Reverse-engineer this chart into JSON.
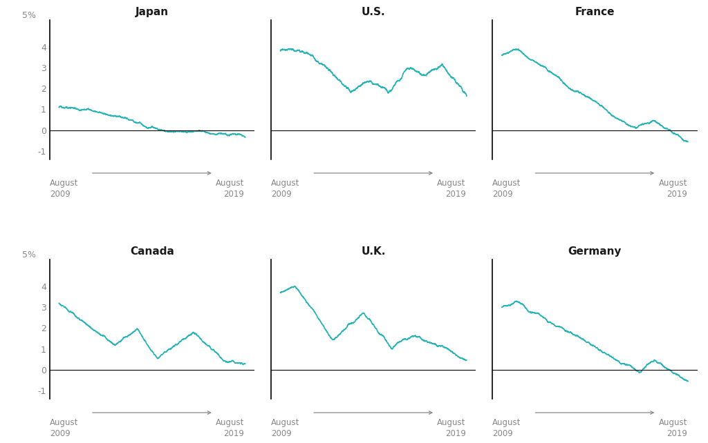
{
  "panels": [
    {
      "title": "Japan"
    },
    {
      "title": "U.S."
    },
    {
      "title": "France"
    },
    {
      "title": "Canada"
    },
    {
      "title": "U.K."
    },
    {
      "title": "Germany"
    }
  ],
  "n_points": 2610,
  "line_color": "#29b5b8",
  "line_width": 1.2,
  "background_color": "#ffffff",
  "text_color": "#888888",
  "title_color": "#1a1a1a",
  "yticks": [
    -1,
    0,
    1,
    2,
    3,
    4
  ],
  "ylim": [
    -1.4,
    5.3
  ],
  "xlabel_start": "August\n2009",
  "xlabel_end": "August\n2019",
  "pct_label": "5%"
}
